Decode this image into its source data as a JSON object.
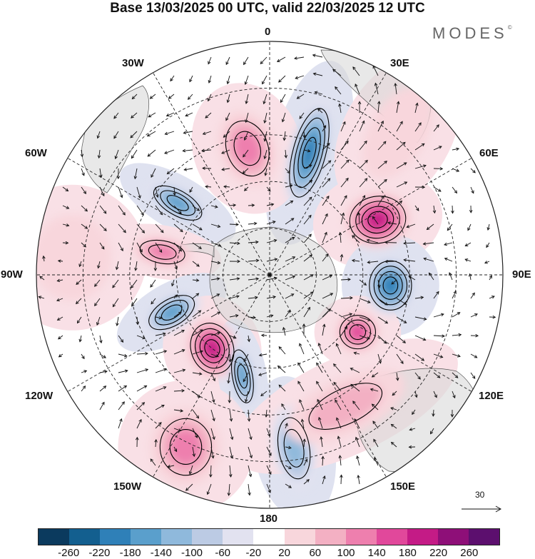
{
  "title": "Base 13/03/2025 00 UTC, valid 22/03/2025 12 UTC",
  "brand": "MODES",
  "brand_mark": "©",
  "longitude_labels": {
    "lon_0": "0",
    "lon_30e": "30E",
    "lon_60e": "60E",
    "lon_90e": "90E",
    "lon_120e": "120E",
    "lon_150e": "150E",
    "lon_180": "180",
    "lon_150w": "150W",
    "lon_120w": "120W",
    "lon_90w": "90W",
    "lon_60w": "60W",
    "lon_30w": "30W"
  },
  "reference_vector": "30",
  "colorbar": {
    "colors": [
      "#0b3a5e",
      "#135f8f",
      "#2f80b8",
      "#5a9fcc",
      "#8fb9dc",
      "#bccbe4",
      "#e2e2f0",
      "#ffffff",
      "#f8d6dc",
      "#f3b0c3",
      "#ee7fae",
      "#e1489b",
      "#c41b86",
      "#8e0f78",
      "#5c0f6e"
    ],
    "ticks": [
      "-260",
      "-220",
      "-180",
      "-140",
      "-100",
      "-60",
      "-20",
      "20",
      "60",
      "100",
      "140",
      "180",
      "220",
      "260"
    ]
  },
  "anomaly_centers": [
    {
      "name": "blue-30e",
      "lon": 18,
      "dist": 0.55,
      "value": -220,
      "rx": 28,
      "ry": 78,
      "rot": 15
    },
    {
      "name": "pink-50e",
      "lon": 63,
      "dist": 0.52,
      "value": 230,
      "rx": 48,
      "ry": 40,
      "rot": -10
    },
    {
      "name": "pink-20w",
      "lon": -10,
      "dist": 0.55,
      "value": 140,
      "rx": 40,
      "ry": 55,
      "rot": -20
    },
    {
      "name": "blue-90e",
      "lon": 95,
      "dist": 0.52,
      "value": -200,
      "rx": 36,
      "ry": 42,
      "rot": 0
    },
    {
      "name": "pink-125e",
      "lon": 123,
      "dist": 0.45,
      "value": 180,
      "rx": 32,
      "ry": 30,
      "rot": 0
    },
    {
      "name": "blue-50w",
      "lon": -52,
      "dist": 0.5,
      "value": -170,
      "rx": 48,
      "ry": 22,
      "rot": 30
    },
    {
      "name": "pink-75w",
      "lon": -78,
      "dist": 0.47,
      "value": 140,
      "rx": 44,
      "ry": 22,
      "rot": 10
    },
    {
      "name": "blue-110w",
      "lon": -111,
      "dist": 0.45,
      "value": -190,
      "rx": 45,
      "ry": 24,
      "rot": -30
    },
    {
      "name": "pink-140w",
      "lon": -142,
      "dist": 0.4,
      "value": 200,
      "rx": 36,
      "ry": 44,
      "rot": -20
    },
    {
      "name": "blue-165w",
      "lon": -165,
      "dist": 0.45,
      "value": -170,
      "rx": 18,
      "ry": 48,
      "rot": -10
    },
    {
      "name": "blue-175e",
      "lon": 172,
      "dist": 0.75,
      "value": -140,
      "rx": 30,
      "ry": 60,
      "rot": -10
    },
    {
      "name": "pink-140w-outer",
      "lon": -154,
      "dist": 0.82,
      "value": 140,
      "rx": 50,
      "ry": 55,
      "rot": 0
    },
    {
      "name": "pink-160e",
      "lon": 150,
      "dist": 0.65,
      "value": 90,
      "rx": 90,
      "ry": 40,
      "rot": -25
    },
    {
      "name": "pink-45e-outer",
      "lon": 42,
      "dist": 0.82,
      "value": 60,
      "rx": 40,
      "ry": 70,
      "rot": 30
    },
    {
      "name": "pink-90w-outer",
      "lon": -85,
      "dist": 0.85,
      "value": 40,
      "rx": 55,
      "ry": 60,
      "rot": 0
    }
  ]
}
